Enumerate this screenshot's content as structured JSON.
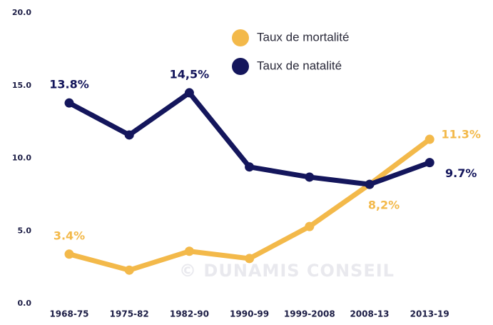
{
  "chart_data": {
    "type": "line",
    "categories": [
      "1968-75",
      "1975-82",
      "1982-90",
      "1990-99",
      "1999-2008",
      "2008-13",
      "2013-19"
    ],
    "series": [
      {
        "name": "Taux de mortalité",
        "color": "#f3b94a",
        "values": [
          3.4,
          2.3,
          3.6,
          3.1,
          5.3,
          8.2,
          11.3
        ],
        "value_labels": [
          "3.4%",
          null,
          null,
          null,
          null,
          "8,2%",
          "11.3%"
        ]
      },
      {
        "name": "Taux de natalité",
        "color": "#14165c",
        "values": [
          13.8,
          11.6,
          14.5,
          9.4,
          8.7,
          8.2,
          9.7
        ],
        "value_labels": [
          "13.8%",
          null,
          "14,5%",
          null,
          null,
          null,
          "9.7%"
        ]
      }
    ],
    "ylim": [
      0,
      20
    ],
    "yticks": [
      {
        "value": 0,
        "label": "0.0"
      },
      {
        "value": 5,
        "label": "5.0"
      },
      {
        "value": 10,
        "label": "10.0"
      },
      {
        "value": 15,
        "label": "15.0"
      },
      {
        "value": 20,
        "label": "20.0"
      }
    ],
    "grid": false,
    "legend": "top-right",
    "watermark": "© DUNAMIS CONSEIL"
  }
}
